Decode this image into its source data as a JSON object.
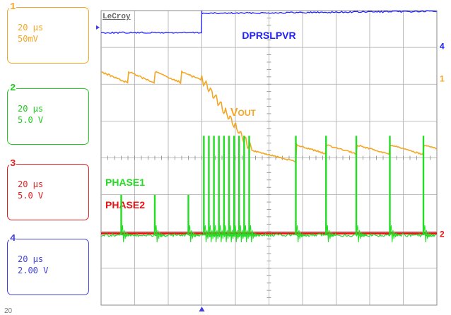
{
  "channels": [
    {
      "num": "1",
      "timebase": "20 µs",
      "scale": "50mV",
      "color": "#f5a623"
    },
    {
      "num": "2",
      "timebase": "20 µs",
      "scale": "5.0 V",
      "color": "#22cc22"
    },
    {
      "num": "3",
      "timebase": "20 µs",
      "scale": "5.0 V",
      "color": "#e02020"
    },
    {
      "num": "4",
      "timebase": "20 µs",
      "scale": "2.00 V",
      "color": "#4040e0"
    }
  ],
  "brand": "LeCroy",
  "footer_text": "20",
  "chart_data": {
    "type": "line",
    "title": "",
    "xlabel": "",
    "ylabel": "",
    "grid": true,
    "x_divisions": 10,
    "y_divisions": 8,
    "x_range": [
      0,
      10
    ],
    "y_range": [
      0,
      8
    ],
    "trigger_x_div": 3.0,
    "series": [
      {
        "name": "DPRSLPVR",
        "label_text": "DPRSLPVR",
        "color": "#2020ff",
        "channel": "4",
        "edge_x_div": 3.0,
        "low_div": 7.4,
        "high_div": 8.0
      },
      {
        "name": "VOUT",
        "label_main": "V",
        "label_sub": "OUT",
        "color": "#f5a623",
        "channel": "1",
        "pre_level_div": 6.15,
        "post_level_div": 4.2,
        "transition_start_div": 3.0,
        "transition_end_div": 4.5
      },
      {
        "name": "PHASE1",
        "label_text": "PHASE1",
        "color": "#22dd22",
        "channel": "2",
        "base_div": 1.9,
        "high_div": 4.6,
        "pulses_div": [
          0.6,
          1.6,
          2.6,
          3.06,
          3.21,
          3.36,
          3.51,
          3.66,
          3.81,
          3.96,
          4.11,
          4.26,
          4.41,
          5.8,
          6.7,
          7.6,
          8.6,
          9.6
        ],
        "narrow_pulses_div": [
          0.6,
          1.6,
          2.6
        ]
      },
      {
        "name": "PHASE2",
        "label_text": "PHASE2",
        "color": "#ee1111",
        "channel": "3",
        "base_div": 1.95
      }
    ]
  }
}
